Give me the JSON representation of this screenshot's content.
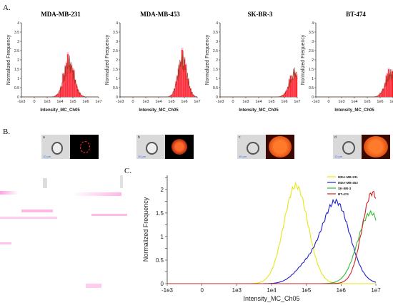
{
  "panels": {
    "a": {
      "letter": "A."
    },
    "b": {
      "letter": "B."
    },
    "c": {
      "letter": "C."
    }
  },
  "histogram_common": {
    "ylabel": "Normalized Frequency",
    "xlabel": "Intensity_MC_Ch05",
    "yticks": [
      "0",
      "0.5",
      "1",
      "1.5",
      "2",
      "2.5",
      "3",
      "3.5",
      "4"
    ],
    "colors": {
      "fill": "#ff1a1a",
      "halo": "#ff9ad2",
      "line": "#7a3a10",
      "axis": "#333333"
    }
  },
  "overlay_common": {
    "ylabel": "Normalized Frequency",
    "xlabel": "Intensity_MC_Ch05",
    "xticks": [
      "-1e3",
      "0",
      "1e3",
      "1e4",
      "1e5",
      "1e6",
      "1e7"
    ],
    "yticks": [
      "0",
      "0.25",
      "0.5",
      "0.75",
      "1",
      "1.25",
      "1.5",
      "1.75",
      "2",
      "2.25"
    ]
  },
  "images": [
    {
      "id": "a",
      "letter": "a",
      "scale": "10 µm",
      "cell_color": "#ff2a2a",
      "cell_kind": "dim"
    },
    {
      "id": "b",
      "letter": "b",
      "scale": "10 µm",
      "cell_color": "#ff5a1a",
      "cell_kind": "medium"
    },
    {
      "id": "c",
      "letter": "c",
      "scale": "10 µm",
      "cell_color": "#ff6a1a",
      "cell_kind": "bright"
    },
    {
      "id": "d",
      "letter": "d",
      "scale": "10 µm",
      "cell_color": "#ff6a1a",
      "cell_kind": "bright"
    }
  ],
  "chart_data": [
    {
      "type": "area",
      "title": "MDA-MB-231",
      "xlabel": "Intensity_MC_Ch05",
      "ylabel": "Normalized Frequency",
      "xticks": [
        "-1e3",
        "0",
        "1e3",
        "1e4",
        "1e5",
        "1e6",
        "1e7"
      ],
      "ylim": [
        0,
        4
      ],
      "series": [
        {
          "peak_x": 3.7,
          "peak_y": 2.05,
          "width": 0.4
        }
      ]
    },
    {
      "type": "area",
      "title": "MDA-MB-453",
      "xlabel": "Intensity_MC_Ch05",
      "ylabel": "Normalized Frequency",
      "xticks": [
        "-1e3",
        "0",
        "1e3",
        "1e4",
        "1e5",
        "1e6",
        "1e7"
      ],
      "ylim": [
        0,
        4
      ],
      "series": [
        {
          "peak_x": 4.85,
          "peak_y": 2.3,
          "width": 0.35
        }
      ]
    },
    {
      "type": "area",
      "title": "SK-BR-3",
      "xlabel": "Intensity_MC_Ch05",
      "ylabel": "Normalized Frequency",
      "xticks": [
        "-1e3",
        "0",
        "1e3",
        "1e4",
        "1e5",
        "1e6",
        "1e7"
      ],
      "ylim": [
        0,
        4
      ],
      "series": [
        {
          "peak_x": 5.85,
          "peak_y": 1.5,
          "width": 0.42
        }
      ]
    },
    {
      "type": "area",
      "title": "BT-474",
      "xlabel": "Intensity_MC_Ch05",
      "ylabel": "Normalized Frequency",
      "xticks": [
        "-1e3",
        "0",
        "1e3",
        "1e4",
        "1e5",
        "1e6",
        "1e7"
      ],
      "ylim": [
        0,
        4
      ],
      "series": [
        {
          "peak_x": 5.85,
          "peak_y": 1.4,
          "width": 0.42
        }
      ]
    },
    {
      "type": "line",
      "title": "",
      "xlabel": "Intensity_MC_Ch05",
      "ylabel": "Normalized Frequency",
      "xticks": [
        "-1e3",
        "0",
        "1e3",
        "1e4",
        "1e5",
        "1e6",
        "1e7"
      ],
      "ylim": [
        0,
        2.3
      ],
      "legend": "top-right",
      "series": [
        {
          "name": "MDA-MB-231",
          "color": "#e6e619",
          "peak_x": 3.7,
          "peak_y": 2.08,
          "width": 0.35
        },
        {
          "name": "MDA-MB-453",
          "color": "#2222cc",
          "peak_x": 4.85,
          "peak_y": 1.73,
          "width": 0.4,
          "shoulder": true
        },
        {
          "name": "SK-BR-3",
          "color": "#33bb33",
          "peak_x": 5.85,
          "peak_y": 1.5,
          "width": 0.37
        },
        {
          "name": "BT-474",
          "color": "#cc2222",
          "peak_x": 5.9,
          "peak_y": 1.93,
          "width": 0.3
        }
      ]
    }
  ]
}
